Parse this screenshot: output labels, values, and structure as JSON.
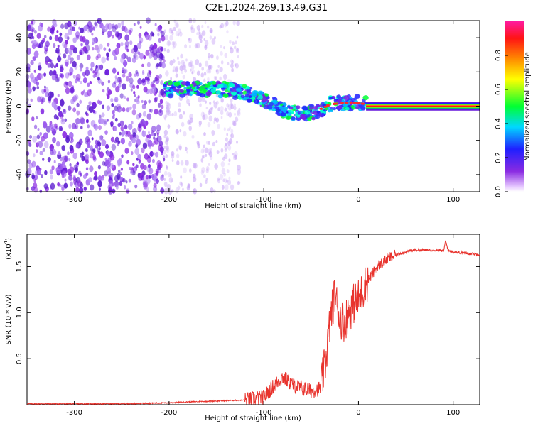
{
  "title": "C2E1.2024.269.13.49.G31",
  "chart_data": [
    {
      "type": "heatmap",
      "name": "spectrogram",
      "xlabel": "Height of straight line (km)",
      "ylabel": "Frequency (Hz)",
      "xlim": [
        -350,
        128
      ],
      "ylim": [
        -50,
        50
      ],
      "xticks": [
        -300,
        -200,
        -100,
        0,
        100
      ],
      "yticks": [
        -40,
        -20,
        0,
        20,
        40
      ],
      "colorbar": {
        "label": "Normalized spectral amplitude",
        "range": [
          0,
          1
        ],
        "ticks": [
          "0.0",
          "0.2",
          "0.4",
          "0.6",
          "0.8"
        ],
        "colormap": "rainbow (white-violet-blue-cyan-green-yellow-red)"
      },
      "regions": [
        {
          "x_range": [
            -350,
            -205
          ],
          "description": "broadband violet noise, amplitude ~0.1-0.2"
        },
        {
          "x_range": [
            -205,
            -20
          ],
          "center_freq_hz": [
            10,
            10,
            5,
            -5,
            0
          ],
          "amplitude": "0.3-0.6"
        },
        {
          "x_range": [
            -20,
            128
          ],
          "center_freq_hz": 0,
          "amplitude": "0.9-1.0 (narrow red line)"
        }
      ]
    },
    {
      "type": "line",
      "name": "snr",
      "xlabel": "Height of straight line (km)",
      "ylabel": "SNR (10 * v/v)",
      "ylabel_multiplier": "(x10",
      "ylabel_exponent": "4",
      "xlim": [
        -350,
        128
      ],
      "ylim": [
        0,
        1.85
      ],
      "xticks": [
        -300,
        -200,
        -100,
        0,
        100
      ],
      "yticks": [
        "0.5",
        "1.0",
        "1.5"
      ],
      "color": "#e8332d",
      "x": [
        -350,
        -300,
        -250,
        -200,
        -180,
        -150,
        -120,
        -100,
        -90,
        -80,
        -70,
        -60,
        -50,
        -40,
        -35,
        -30,
        -25,
        -20,
        -15,
        -10,
        -5,
        0,
        5,
        10,
        20,
        30,
        40,
        50,
        60,
        80,
        90,
        92,
        95,
        100,
        128
      ],
      "y": [
        0.01,
        0.01,
        0.01,
        0.02,
        0.03,
        0.04,
        0.05,
        0.08,
        0.2,
        0.3,
        0.22,
        0.18,
        0.15,
        0.18,
        0.45,
        0.9,
        1.2,
        0.95,
        0.9,
        1.0,
        1.1,
        1.15,
        1.25,
        1.35,
        1.5,
        1.58,
        1.63,
        1.66,
        1.68,
        1.68,
        1.67,
        1.78,
        1.67,
        1.66,
        1.63
      ]
    }
  ]
}
